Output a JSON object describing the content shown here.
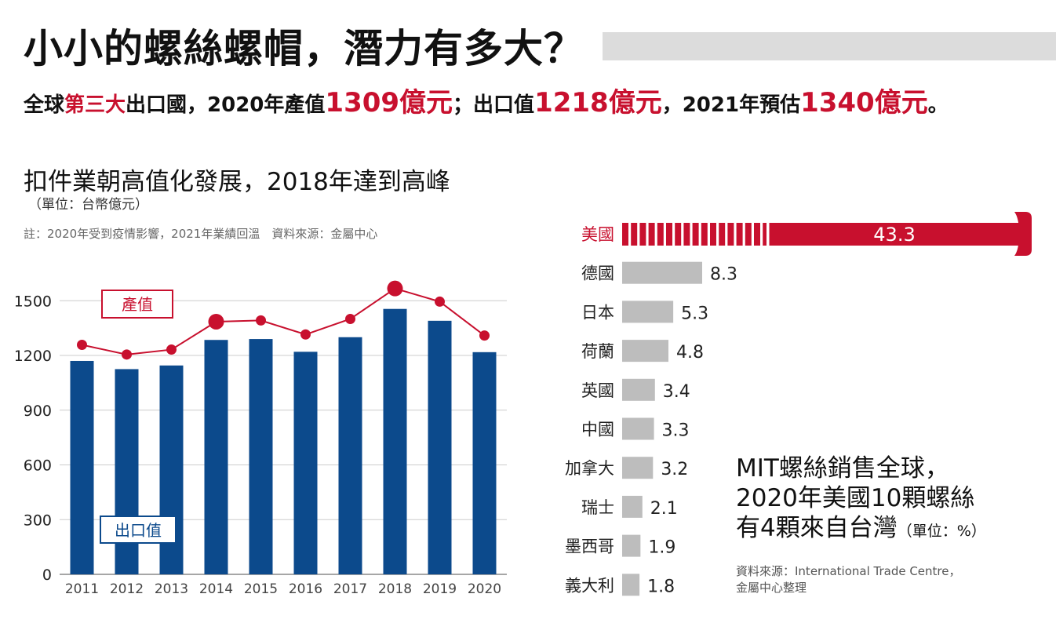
{
  "header": {
    "title": "小小的螺絲螺帽，潛力有多大？",
    "subtitle_parts": [
      "全球",
      "第三大",
      "出口國，2020年產值",
      "1309億元",
      "；出口值",
      "1218億元",
      "，2021年預估",
      "1340億元",
      "。"
    ]
  },
  "colors": {
    "red": "#c8102e",
    "navy": "#0c4a8c",
    "gray_bar": "#bdbdbd",
    "title_bar": "#dcdcdc"
  },
  "left": {
    "title": "扣件業朝高值化發展，2018年達到高峰",
    "unit": "（單位：台幣億元）",
    "note": "註：2020年受到疫情影響，2021年業績回溫　資料來源：金屬中心"
  },
  "right": {
    "caption_lines": [
      "MIT螺絲銷售全球，",
      "2020年美國10顆螺絲",
      "有4顆來自台灣"
    ],
    "caption_unit": "（單位：%）",
    "source_lines": [
      "資料來源：International Trade Centre，",
      "金屬中心整理"
    ]
  },
  "chart_data": [
    {
      "type": "bar",
      "categories": [
        "2011",
        "2012",
        "2013",
        "2014",
        "2015",
        "2016",
        "2017",
        "2018",
        "2019",
        "2020"
      ],
      "series": [
        {
          "name": "出口值",
          "kind": "bar",
          "values": [
            1170,
            1125,
            1145,
            1285,
            1290,
            1220,
            1300,
            1455,
            1390,
            1218
          ]
        },
        {
          "name": "產值",
          "kind": "line",
          "values": [
            1258,
            1205,
            1232,
            1385,
            1392,
            1315,
            1400,
            1567,
            1495,
            1309
          ]
        }
      ],
      "emphasized_points": [
        "2014",
        "2018"
      ],
      "yticks": [
        0,
        300,
        600,
        900,
        1200,
        1500
      ],
      "ylim": [
        0,
        1600
      ],
      "grid": true
    },
    {
      "type": "bar",
      "orientation": "horizontal",
      "categories": [
        "美國",
        "德國",
        "日本",
        "荷蘭",
        "英國",
        "中國",
        "加拿大",
        "瑞士",
        "墨西哥",
        "義大利"
      ],
      "values": [
        43.3,
        8.3,
        5.3,
        4.8,
        3.4,
        3.3,
        3.2,
        2.1,
        1.9,
        1.8
      ],
      "value_labels": [
        "43.3",
        "8.3",
        "5.3",
        "4.8",
        "3.4",
        "3.3",
        "3.2",
        "2.1",
        "1.9",
        "1.8"
      ],
      "highlight": "美國"
    }
  ]
}
